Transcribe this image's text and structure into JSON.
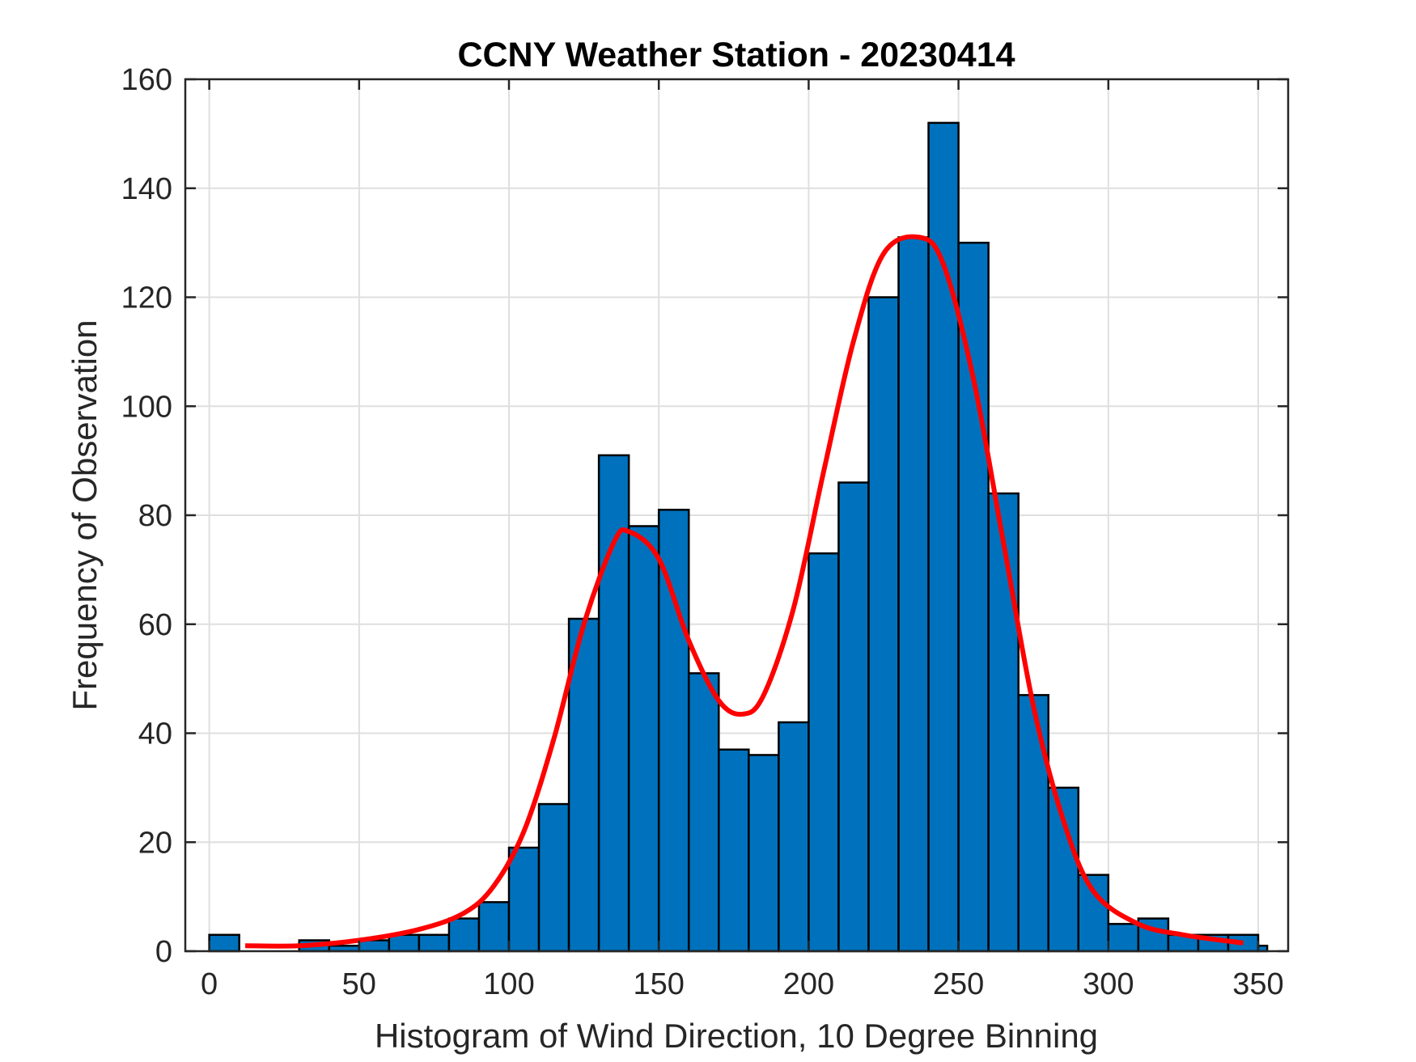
{
  "chart_data": {
    "type": "bar",
    "title": "CCNY Weather Station - 20230414",
    "xlabel": "Histogram of Wind Direction, 10 Degree Binning",
    "ylabel": "Frequency of Observation",
    "xlim": [
      -8,
      360
    ],
    "ylim": [
      0,
      160
    ],
    "xticks": [
      0,
      50,
      100,
      150,
      200,
      250,
      300,
      350
    ],
    "yticks": [
      0,
      20,
      40,
      60,
      80,
      100,
      120,
      140,
      160
    ],
    "grid": true,
    "bin_width": 10,
    "bins": [
      {
        "x0": 0,
        "x1": 10,
        "value": 3
      },
      {
        "x0": 10,
        "x1": 20,
        "value": 0
      },
      {
        "x0": 20,
        "x1": 30,
        "value": 0
      },
      {
        "x0": 30,
        "x1": 40,
        "value": 2
      },
      {
        "x0": 40,
        "x1": 50,
        "value": 1
      },
      {
        "x0": 50,
        "x1": 60,
        "value": 2
      },
      {
        "x0": 60,
        "x1": 70,
        "value": 3
      },
      {
        "x0": 70,
        "x1": 80,
        "value": 3
      },
      {
        "x0": 80,
        "x1": 90,
        "value": 6
      },
      {
        "x0": 90,
        "x1": 100,
        "value": 9
      },
      {
        "x0": 100,
        "x1": 110,
        "value": 19
      },
      {
        "x0": 110,
        "x1": 120,
        "value": 27
      },
      {
        "x0": 120,
        "x1": 130,
        "value": 61
      },
      {
        "x0": 130,
        "x1": 140,
        "value": 91
      },
      {
        "x0": 140,
        "x1": 150,
        "value": 78
      },
      {
        "x0": 150,
        "x1": 160,
        "value": 81
      },
      {
        "x0": 160,
        "x1": 170,
        "value": 51
      },
      {
        "x0": 170,
        "x1": 180,
        "value": 37
      },
      {
        "x0": 180,
        "x1": 190,
        "value": 36
      },
      {
        "x0": 190,
        "x1": 200,
        "value": 42
      },
      {
        "x0": 200,
        "x1": 210,
        "value": 73
      },
      {
        "x0": 210,
        "x1": 220,
        "value": 86
      },
      {
        "x0": 220,
        "x1": 230,
        "value": 120
      },
      {
        "x0": 230,
        "x1": 240,
        "value": 131
      },
      {
        "x0": 240,
        "x1": 250,
        "value": 152
      },
      {
        "x0": 250,
        "x1": 260,
        "value": 130
      },
      {
        "x0": 260,
        "x1": 270,
        "value": 84
      },
      {
        "x0": 270,
        "x1": 280,
        "value": 47
      },
      {
        "x0": 280,
        "x1": 290,
        "value": 30
      },
      {
        "x0": 290,
        "x1": 300,
        "value": 14
      },
      {
        "x0": 300,
        "x1": 310,
        "value": 5
      },
      {
        "x0": 310,
        "x1": 320,
        "value": 6
      },
      {
        "x0": 320,
        "x1": 330,
        "value": 3
      },
      {
        "x0": 330,
        "x1": 340,
        "value": 3
      },
      {
        "x0": 340,
        "x1": 350,
        "value": 3
      },
      {
        "x0": 350,
        "x1": 353,
        "value": 1
      }
    ],
    "series": [
      {
        "name": "fit curve",
        "type": "line",
        "x": [
          12,
          30,
          50,
          70,
          85,
          95,
          105,
          115,
          125,
          135,
          140,
          150,
          160,
          170,
          178,
          185,
          195,
          205,
          215,
          225,
          237,
          245,
          255,
          265,
          275,
          285,
          295,
          310,
          325,
          345
        ],
        "y": [
          1,
          1,
          2,
          4,
          7,
          12,
          22,
          39,
          60,
          75,
          77,
          72,
          57,
          46,
          43.5,
          47,
          63,
          88,
          112,
          128,
          131,
          126,
          105,
          75,
          45,
          24,
          11,
          5,
          3,
          1.5
        ]
      }
    ],
    "colors": {
      "bar_fill": "#0072BD",
      "bar_edge": "#000000",
      "curve": "#FF0000",
      "grid": "#DFDFDF",
      "axis": "#262626"
    }
  }
}
